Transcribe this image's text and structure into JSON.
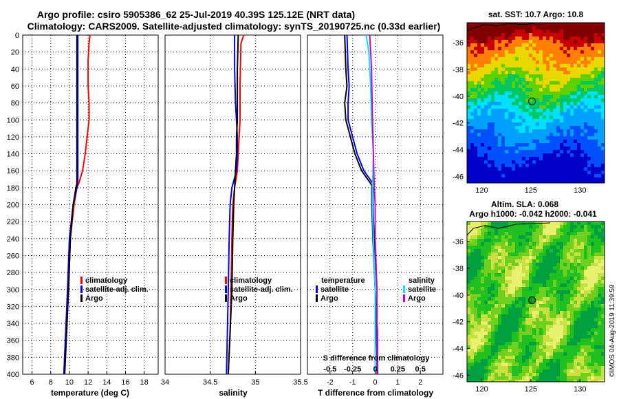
{
  "figure": {
    "title_line1": "Argo profile: csiro 5905386_62 25-Jul-2019 40.39S 125.12E (NRT data)",
    "title_line2": "Climatology: CARS2009. Satellite-adjusted climatology: synTS_20190725.nc (0.33d earlier)",
    "sst_title": "sat. SST: 10.7 Argo: 10.8",
    "sla_title1": "Altim. SLA: 0.068",
    "sla_title2": "Argo h1000: -0.042 h2000: -0.041",
    "credit": "©IMOS 04-Aug-2019 11:39:59"
  },
  "colors": {
    "climatology": "#ff0000",
    "satellite": "#0000ff",
    "argo": "#000000",
    "salinity_satellite": "#00e5ff",
    "salinity_argo": "#d000d0"
  },
  "chart_data": [
    {
      "type": "line",
      "panel": "temperature",
      "xlabel": "temperature (deg C)",
      "xlim": [
        5,
        19.5
      ],
      "xticks": [
        6,
        8,
        10,
        12,
        14,
        16,
        18
      ],
      "ylim": [
        0,
        400
      ],
      "yticks": [
        0,
        20,
        40,
        60,
        80,
        100,
        120,
        140,
        160,
        180,
        200,
        220,
        240,
        260,
        280,
        300,
        320,
        340,
        360,
        380,
        400
      ],
      "y_reversed": true,
      "grid": true,
      "legend": [
        "climatology",
        "satellite-adj. clim.",
        "Argo"
      ],
      "legend_position": "lower-right",
      "series": [
        {
          "name": "climatology",
          "color_key": "climatology",
          "depth": [
            0,
            10,
            30,
            60,
            80,
            100,
            120,
            140,
            160,
            175,
            180,
            200,
            240,
            300,
            350,
            400
          ],
          "values": [
            12.2,
            12.1,
            12.0,
            12.0,
            12.1,
            12.1,
            11.9,
            11.7,
            11.4,
            11.0,
            10.8,
            10.5,
            10.1,
            9.9,
            9.7,
            9.4
          ]
        },
        {
          "name": "satellite-adj. clim.",
          "color_key": "satellite",
          "depth": [
            0,
            20,
            60,
            100,
            140,
            170,
            180,
            200,
            240,
            300,
            350,
            400
          ],
          "values": [
            10.9,
            10.9,
            10.9,
            10.9,
            10.9,
            10.9,
            10.8,
            10.4,
            10.0,
            9.8,
            9.6,
            9.4
          ]
        },
        {
          "name": "Argo",
          "color_key": "argo",
          "depth": [
            0,
            40,
            80,
            120,
            160,
            175,
            180,
            200,
            240,
            300,
            350,
            400
          ],
          "values": [
            10.8,
            10.8,
            10.8,
            10.8,
            10.8,
            10.8,
            10.7,
            10.4,
            10.1,
            9.9,
            9.7,
            9.5
          ]
        }
      ]
    },
    {
      "type": "line",
      "panel": "salinity",
      "xlabel": "salinity",
      "xlim": [
        34,
        35.5
      ],
      "xticks": [
        34,
        34.5,
        35,
        35.5
      ],
      "ylim": [
        0,
        400
      ],
      "y_reversed": true,
      "grid": true,
      "legend": [
        "climatology",
        "satellite-adj. clim.",
        "Argo"
      ],
      "legend_position": "lower-right",
      "series": [
        {
          "name": "climatology",
          "color_key": "climatology",
          "depth": [
            0,
            10,
            60,
            100,
            120,
            140,
            160,
            180,
            200,
            240,
            300,
            350,
            400
          ],
          "values": [
            34.87,
            34.84,
            34.83,
            34.83,
            34.82,
            34.81,
            34.8,
            34.77,
            34.75,
            34.74,
            34.73,
            34.72,
            34.7
          ],
          "notes": "near-surface cluster"
        },
        {
          "name": "satellite-adj. clim.",
          "color_key": "satellite",
          "depth": [
            0,
            40,
            80,
            100,
            120,
            140,
            160,
            180,
            200,
            240,
            300,
            350,
            400
          ],
          "values": [
            34.77,
            34.77,
            34.78,
            34.79,
            34.8,
            34.8,
            34.79,
            34.74,
            34.72,
            34.71,
            34.7,
            34.69,
            34.68
          ]
        },
        {
          "name": "Argo",
          "color_key": "argo",
          "depth": [
            0,
            40,
            80,
            100,
            120,
            140,
            160,
            180,
            200,
            240,
            300,
            350,
            400
          ],
          "values": [
            34.81,
            34.8,
            34.8,
            34.8,
            34.79,
            34.79,
            34.78,
            34.77,
            34.76,
            34.75,
            34.74,
            34.72,
            34.7
          ]
        }
      ]
    },
    {
      "type": "line",
      "panel": "difference",
      "xlabel": "T difference from climatology",
      "xlim": [
        -3,
        3
      ],
      "xticks": [
        -2,
        -1,
        0,
        1,
        2
      ],
      "top_axis_label": "S difference from climatology",
      "top_xticks": [
        "-0.5",
        "-0.25",
        "0",
        "0.25",
        "0.5"
      ],
      "top_xtick_values": [
        -0.5,
        -0.25,
        0,
        0.25,
        0.5
      ],
      "ylim": [
        0,
        400
      ],
      "y_reversed": true,
      "grid": true,
      "legend_temperature_title": "temperature",
      "legend_salinity_title": "salinity",
      "legend_temperature": [
        "satellite",
        "Argo"
      ],
      "legend_salinity": [
        "satellite",
        "Argo"
      ],
      "series": [
        {
          "name": "T satellite",
          "color_key": "satellite",
          "depth": [
            0,
            40,
            60,
            80,
            100,
            120,
            140,
            160,
            175,
            180,
            200,
            240,
            300,
            350,
            400
          ],
          "values": [
            -1.25,
            -1.2,
            -1.15,
            -1.2,
            -1.2,
            -1.0,
            -0.8,
            -0.5,
            -0.1,
            -0.15,
            -0.15,
            -0.1,
            0.0,
            0.1,
            0.1
          ]
        },
        {
          "name": "T Argo",
          "color_key": "argo",
          "depth": [
            0,
            40,
            60,
            80,
            100,
            120,
            140,
            160,
            175,
            180,
            200,
            240,
            300,
            350,
            400
          ],
          "values": [
            -1.35,
            -1.3,
            -1.25,
            -1.35,
            -1.3,
            -1.1,
            -0.9,
            -0.6,
            -0.2,
            -0.1,
            -0.1,
            -0.05,
            0.0,
            0.05,
            0.1
          ]
        },
        {
          "name": "S satellite",
          "color_key": "salinity_satellite",
          "scale": "salinity",
          "depth": [
            0,
            20,
            60,
            100,
            140,
            180,
            200,
            240,
            300,
            350,
            400
          ],
          "values": [
            -0.1,
            -0.07,
            -0.05,
            -0.04,
            -0.02,
            -0.03,
            -0.03,
            -0.02,
            0.0,
            0.0,
            0.0
          ]
        },
        {
          "name": "S Argo",
          "color_key": "salinity_argo",
          "scale": "salinity",
          "depth": [
            0,
            40,
            100,
            140,
            180,
            200,
            240,
            300,
            350,
            400
          ],
          "values": [
            -0.06,
            -0.04,
            -0.03,
            -0.02,
            -0.01,
            0.0,
            0.0,
            0.02,
            0.02,
            0.02
          ]
        }
      ]
    },
    {
      "type": "heatmap",
      "panel": "sst_map",
      "xlim": [
        118.5,
        132.5
      ],
      "ylim": [
        -46.5,
        -34.5
      ],
      "xticks": [
        120,
        125,
        130
      ],
      "yticks": [
        -36,
        -38,
        -40,
        -42,
        -44,
        -46
      ],
      "marker": {
        "lon": 125.12,
        "lat": -40.39
      }
    },
    {
      "type": "heatmap",
      "panel": "sla_map",
      "xlim": [
        118.5,
        132.5
      ],
      "ylim": [
        -46.5,
        -34.5
      ],
      "xticks": [
        120,
        125,
        130
      ],
      "yticks": [
        -36,
        -38,
        -40,
        -42,
        -44,
        -46
      ],
      "marker": {
        "lon": 125.12,
        "lat": -40.39
      }
    }
  ],
  "legend_labels": {
    "climatology": "climatology",
    "satellite_adj": "satellite-adj. clim.",
    "argo": "Argo",
    "satellite": "satellite"
  }
}
